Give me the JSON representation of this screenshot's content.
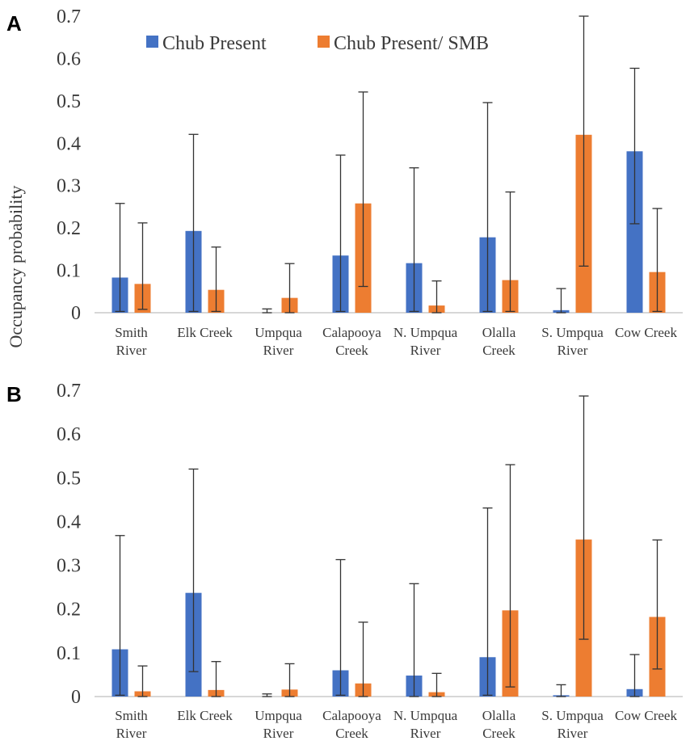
{
  "colors": {
    "series1": "#4472C4",
    "series2": "#ED7D31"
  },
  "ylabel": "Occupancy probability",
  "legend": [
    {
      "name": "Chub Present"
    },
    {
      "name": "Chub Present/ SMB"
    }
  ],
  "chart_data": [
    {
      "type": "bar",
      "panel": "A",
      "ylim": [
        0,
        0.7
      ],
      "yticks": [
        "0",
        "0.1",
        "0.2",
        "0.3",
        "0.4",
        "0.5",
        "0.6",
        "0.7"
      ],
      "categories": [
        [
          "Smith",
          "River"
        ],
        [
          "Elk Creek"
        ],
        [
          "Umpqua",
          "River"
        ],
        [
          "Calapooya",
          "Creek"
        ],
        [
          "N. Umpqua",
          "River"
        ],
        [
          "Olalla",
          "Creek"
        ],
        [
          "S. Umpqua",
          "River"
        ],
        [
          "Cow Creek"
        ]
      ],
      "series": [
        {
          "name": "Chub Present",
          "values": [
            0.083,
            0.193,
            0.0,
            0.135,
            0.117,
            0.178,
            0.006,
            0.381
          ],
          "lower": [
            0.003,
            0.003,
            0.0,
            0.003,
            0.003,
            0.003,
            0.0,
            0.21
          ],
          "upper": [
            0.258,
            0.421,
            0.009,
            0.372,
            0.342,
            0.496,
            0.057,
            0.577
          ]
        },
        {
          "name": "Chub Present/ SMB",
          "values": [
            0.068,
            0.054,
            0.035,
            0.258,
            0.017,
            0.077,
            0.42,
            0.096
          ],
          "lower": [
            0.008,
            0.003,
            0.0,
            0.062,
            0.0,
            0.003,
            0.11,
            0.003
          ],
          "upper": [
            0.212,
            0.155,
            0.116,
            0.521,
            0.075,
            0.285,
            0.7,
            0.246
          ]
        }
      ]
    },
    {
      "type": "bar",
      "panel": "B",
      "ylim": [
        0,
        0.7
      ],
      "yticks": [
        "0",
        "0.1",
        "0.2",
        "0.3",
        "0.4",
        "0.5",
        "0.6",
        "0.7"
      ],
      "categories": [
        [
          "Smith",
          "River"
        ],
        [
          "Elk Creek"
        ],
        [
          "Umpqua",
          "River"
        ],
        [
          "Calapooya",
          "Creek"
        ],
        [
          "N. Umpqua",
          "River"
        ],
        [
          "Olalla",
          "Creek"
        ],
        [
          "S. Umpqua",
          "River"
        ],
        [
          "Cow Creek"
        ]
      ],
      "series": [
        {
          "name": "Chub Present",
          "values": [
            0.108,
            0.237,
            0.0,
            0.06,
            0.048,
            0.09,
            0.003,
            0.017
          ],
          "lower": [
            0.003,
            0.057,
            0.0,
            0.003,
            0.0,
            0.003,
            0.0,
            0.0
          ],
          "upper": [
            0.368,
            0.52,
            0.006,
            0.313,
            0.258,
            0.431,
            0.027,
            0.096
          ]
        },
        {
          "name": "Chub Present/ SMB",
          "values": [
            0.012,
            0.015,
            0.016,
            0.03,
            0.01,
            0.197,
            0.359,
            0.182
          ],
          "lower": [
            0.0,
            0.0,
            0.0,
            0.0,
            0.0,
            0.022,
            0.131,
            0.063
          ],
          "upper": [
            0.07,
            0.08,
            0.075,
            0.17,
            0.053,
            0.53,
            0.687,
            0.358
          ]
        }
      ]
    }
  ]
}
